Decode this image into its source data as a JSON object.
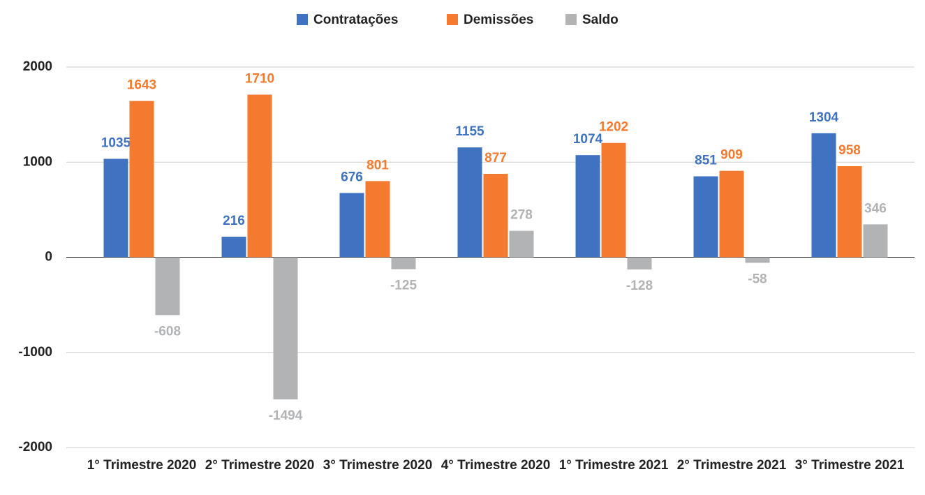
{
  "chart_data": {
    "type": "bar",
    "categories": [
      "1° Trimestre 2020",
      "2° Trimestre 2020",
      "3° Trimestre 2020",
      "4° Trimestre 2020",
      "1° Trimestre 2021",
      "2° Trimestre 2021",
      "3° Trimestre 2021"
    ],
    "series": [
      {
        "name": "Contratações",
        "color": "#3f72c1",
        "values": [
          1035,
          216,
          676,
          1155,
          1074,
          851,
          1304
        ]
      },
      {
        "name": "Demissões",
        "color": "#f47a30",
        "values": [
          1643,
          1710,
          801,
          877,
          1202,
          909,
          958
        ]
      },
      {
        "name": "Saldo",
        "color": "#b1b3b5",
        "values": [
          -608,
          -1494,
          -125,
          278,
          -128,
          -58,
          346
        ]
      }
    ],
    "ylim": [
      -2000,
      2000
    ],
    "yticks": [
      -2000,
      -1000,
      0,
      1000,
      2000
    ],
    "grid": true,
    "legend": "top"
  }
}
